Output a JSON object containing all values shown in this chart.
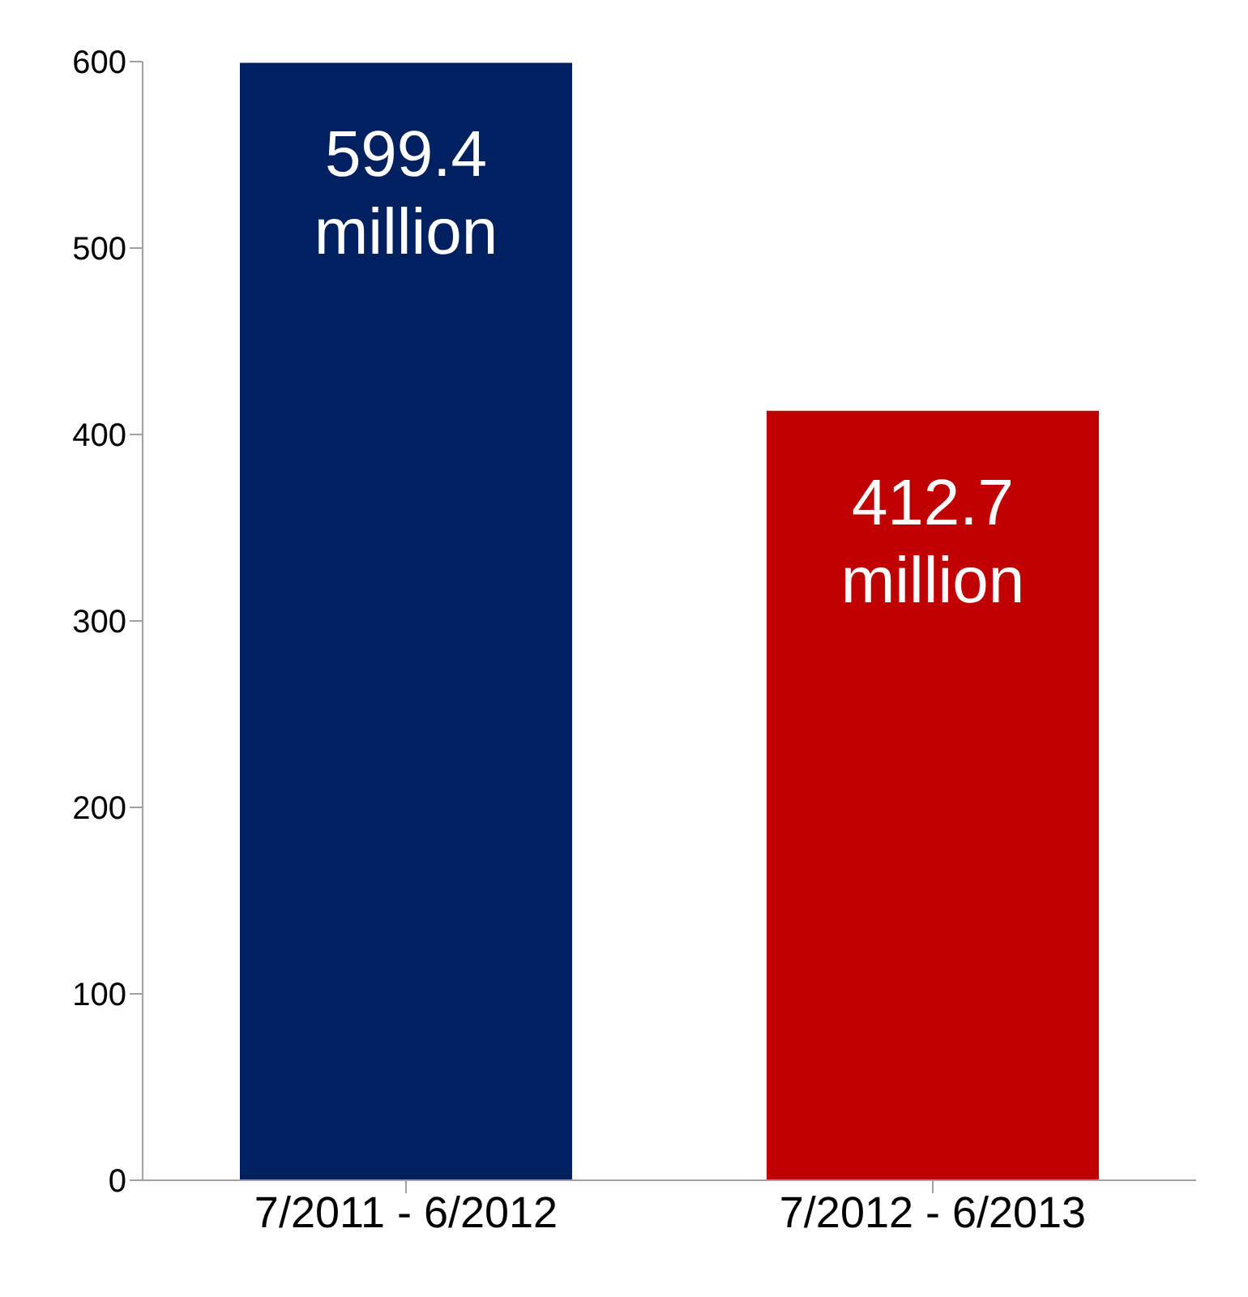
{
  "chart_data": {
    "type": "bar",
    "categories": [
      "7/2011 - 6/2012",
      "7/2012 - 6/2013"
    ],
    "values": [
      599.4,
      412.7
    ],
    "colors": [
      "#002060",
      "#c00000"
    ],
    "value_labels": [
      "599.4 million",
      "412.7 million"
    ],
    "ylim": [
      0,
      600
    ],
    "yticks": [
      0,
      100,
      200,
      300,
      400,
      500,
      600
    ],
    "grid": false,
    "legend": false
  }
}
